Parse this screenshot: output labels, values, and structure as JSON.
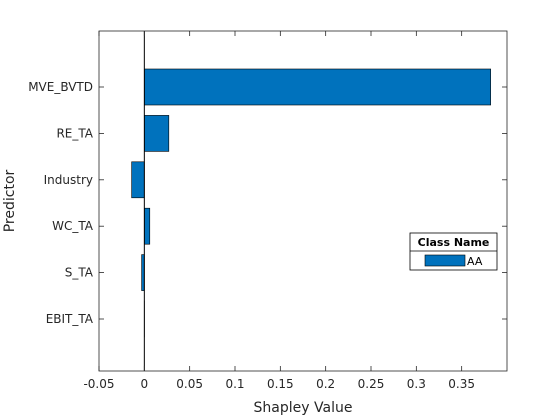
{
  "chart_data": {
    "type": "bar",
    "orientation": "horizontal",
    "categories": [
      "MVE_BVTD",
      "RE_TA",
      "Industry",
      "WC_TA",
      "S_TA",
      "EBIT_TA"
    ],
    "series": [
      {
        "name": "AA",
        "values": [
          0.382,
          0.027,
          -0.014,
          0.006,
          -0.003,
          0.0
        ],
        "color": "#0072BD"
      }
    ],
    "xlabel": "Shapley Value",
    "ylabel": "Predictor",
    "xlim": [
      -0.05,
      0.4
    ],
    "xticks": [
      "-0.05",
      "0",
      "0.05",
      "0.1",
      "0.15",
      "0.2",
      "0.25",
      "0.3",
      "0.35"
    ],
    "xtick_values": [
      -0.05,
      0,
      0.05,
      0.1,
      0.15,
      0.2,
      0.25,
      0.3,
      0.35
    ],
    "grid": false,
    "legend": {
      "title": "Class Name",
      "entries": [
        "AA"
      ],
      "placement": "right"
    },
    "zero_line": true
  }
}
